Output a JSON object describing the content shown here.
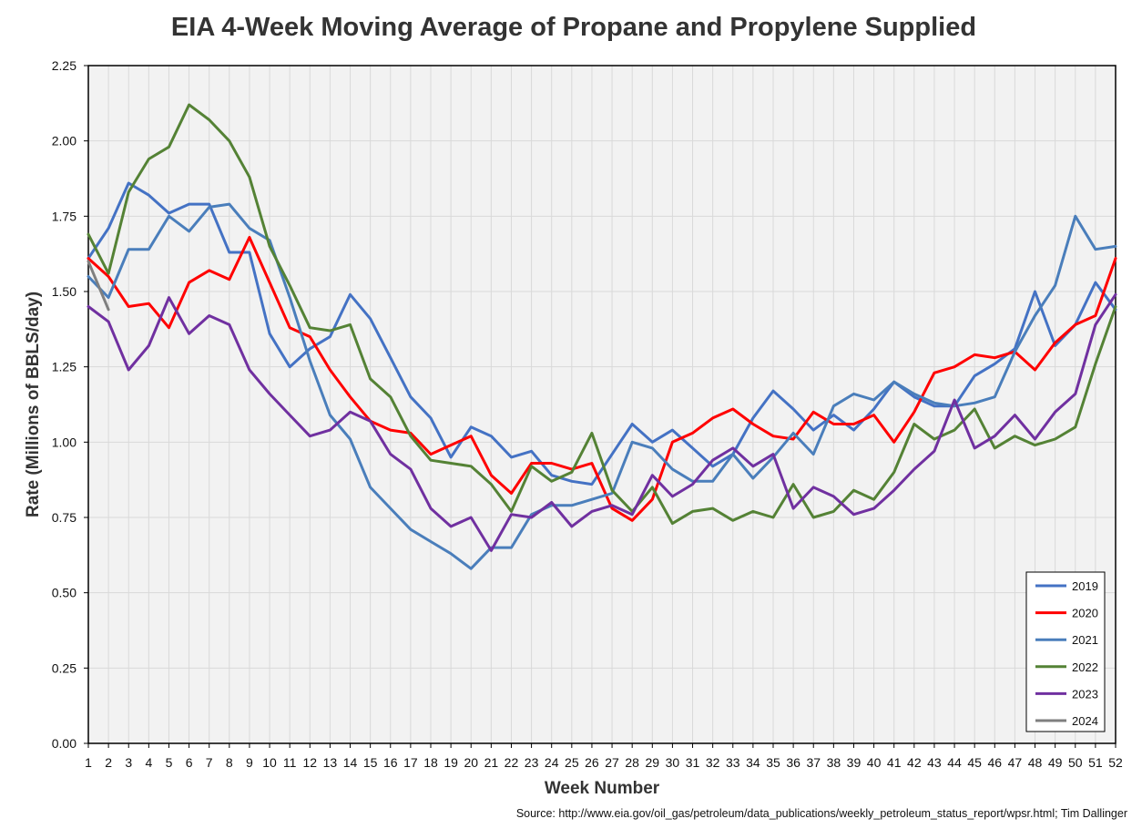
{
  "chart_data": {
    "type": "line",
    "title": "EIA 4-Week Moving Average of Propane and Propylene Supplied",
    "xlabel": "Week Number",
    "ylabel": "Rate (Millions of BBLS/day)",
    "xlim": [
      1,
      52
    ],
    "ylim": [
      0,
      2.25
    ],
    "yticks": [
      "0.00",
      "0.25",
      "0.50",
      "0.75",
      "1.00",
      "1.25",
      "1.50",
      "1.75",
      "2.00",
      "2.25"
    ],
    "xticks": [
      "1",
      "2",
      "3",
      "4",
      "5",
      "6",
      "7",
      "8",
      "9",
      "10",
      "11",
      "12",
      "13",
      "14",
      "15",
      "16",
      "17",
      "18",
      "19",
      "20",
      "21",
      "22",
      "23",
      "24",
      "25",
      "26",
      "27",
      "28",
      "29",
      "30",
      "31",
      "32",
      "33",
      "34",
      "35",
      "36",
      "37",
      "38",
      "39",
      "40",
      "41",
      "42",
      "43",
      "44",
      "45",
      "46",
      "47",
      "48",
      "49",
      "50",
      "51",
      "52"
    ],
    "grid": true,
    "legend_position": "bottom-right",
    "series": [
      {
        "name": "2019",
        "color": "#4472c4",
        "values": [
          1.61,
          1.71,
          1.86,
          1.82,
          1.76,
          1.79,
          1.79,
          1.63,
          1.63,
          1.36,
          1.25,
          1.31,
          1.35,
          1.49,
          1.41,
          1.28,
          1.15,
          1.08,
          0.95,
          1.05,
          1.02,
          0.95,
          0.97,
          0.89,
          0.87,
          0.86,
          0.96,
          1.06,
          1.0,
          1.04,
          0.98,
          0.92,
          0.96,
          1.08,
          1.17,
          1.11,
          1.04,
          1.09,
          1.04,
          1.11,
          1.2,
          1.15,
          1.12,
          1.12,
          1.22,
          1.26,
          1.31,
          1.5,
          1.32,
          1.39,
          1.53,
          1.44
        ]
      },
      {
        "name": "2020",
        "color": "#ff0000",
        "values": [
          1.61,
          1.55,
          1.45,
          1.46,
          1.38,
          1.53,
          1.57,
          1.54,
          1.68,
          1.53,
          1.38,
          1.35,
          1.24,
          1.15,
          1.07,
          1.04,
          1.03,
          0.96,
          0.99,
          1.02,
          0.89,
          0.83,
          0.93,
          0.93,
          0.91,
          0.93,
          0.78,
          0.74,
          0.81,
          1.0,
          1.03,
          1.08,
          1.11,
          1.06,
          1.02,
          1.01,
          1.1,
          1.06,
          1.06,
          1.09,
          1.0,
          1.1,
          1.23,
          1.25,
          1.29,
          1.28,
          1.3,
          1.24,
          1.33,
          1.39,
          1.42,
          1.61
        ]
      },
      {
        "name": "2021",
        "color": "#4a7ebb",
        "values": [
          1.55,
          1.48,
          1.64,
          1.64,
          1.75,
          1.7,
          1.78,
          1.79,
          1.71,
          1.67,
          1.48,
          1.27,
          1.09,
          1.01,
          0.85,
          0.78,
          0.71,
          0.67,
          0.63,
          0.58,
          0.65,
          0.65,
          0.76,
          0.79,
          0.79,
          0.81,
          0.83,
          1.0,
          0.98,
          0.91,
          0.87,
          0.87,
          0.96,
          0.88,
          0.95,
          1.03,
          0.96,
          1.12,
          1.16,
          1.14,
          1.2,
          1.16,
          1.13,
          1.12,
          1.13,
          1.15,
          1.3,
          1.42,
          1.52,
          1.75,
          1.64,
          1.65
        ]
      },
      {
        "name": "2022",
        "color": "#548235",
        "values": [
          1.69,
          1.56,
          1.83,
          1.94,
          1.98,
          2.12,
          2.07,
          2.0,
          1.88,
          1.65,
          1.52,
          1.38,
          1.37,
          1.39,
          1.21,
          1.15,
          1.02,
          0.94,
          0.93,
          0.92,
          0.86,
          0.77,
          0.92,
          0.87,
          0.9,
          1.03,
          0.84,
          0.77,
          0.85,
          0.73,
          0.77,
          0.78,
          0.74,
          0.77,
          0.75,
          0.86,
          0.75,
          0.77,
          0.84,
          0.81,
          0.9,
          1.06,
          1.01,
          1.04,
          1.11,
          0.98,
          1.02,
          0.99,
          1.01,
          1.05,
          1.26,
          1.45
        ]
      },
      {
        "name": "2023",
        "color": "#7030a0",
        "values": [
          1.45,
          1.4,
          1.24,
          1.32,
          1.48,
          1.36,
          1.42,
          1.39,
          1.24,
          1.16,
          1.09,
          1.02,
          1.04,
          1.1,
          1.07,
          0.96,
          0.91,
          0.78,
          0.72,
          0.75,
          0.64,
          0.76,
          0.75,
          0.8,
          0.72,
          0.77,
          0.79,
          0.76,
          0.89,
          0.82,
          0.86,
          0.94,
          0.98,
          0.92,
          0.96,
          0.78,
          0.85,
          0.82,
          0.76,
          0.78,
          0.84,
          0.91,
          0.97,
          1.14,
          0.98,
          1.02,
          1.09,
          1.01,
          1.1,
          1.16,
          1.39,
          1.49
        ]
      },
      {
        "name": "2024",
        "color": "#7f7f7f",
        "values": [
          1.6,
          1.44
        ]
      }
    ]
  },
  "source_note": "Source: http://www.eia.gov/oil_gas/petroleum/data_publications/weekly_petroleum_status_report/wpsr.html; Tim Dallinger"
}
